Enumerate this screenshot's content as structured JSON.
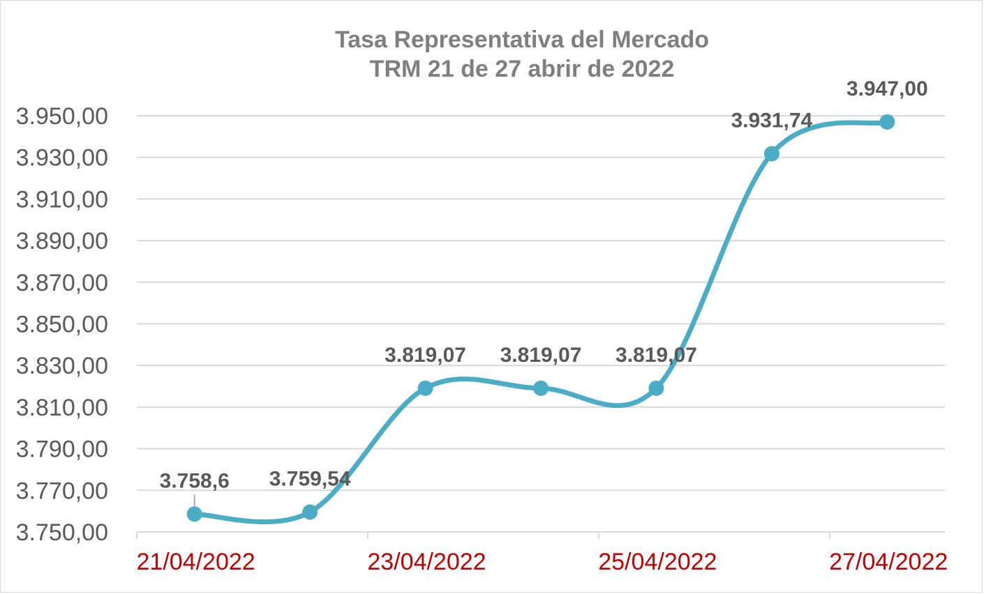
{
  "chart_data": {
    "type": "line",
    "title": "Tasa Representativa del Mercado",
    "subtitle": "TRM  21 de 27 abrir de 2022",
    "xlabel": "",
    "ylabel": "",
    "x": [
      "21/04/2022",
      "22/04/2022",
      "23/04/2022",
      "24/04/2022",
      "25/04/2022",
      "26/04/2022",
      "27/04/2022"
    ],
    "x_tick_labels": [
      "21/04/2022",
      "23/04/2022",
      "25/04/2022",
      "27/04/2022"
    ],
    "y_tick_labels": [
      "3.750,00",
      "3.770,00",
      "3.790,00",
      "3.810,00",
      "3.830,00",
      "3.850,00",
      "3.870,00",
      "3.890,00",
      "3.910,00",
      "3.930,00",
      "3.950,00"
    ],
    "ylim": [
      3750,
      3950
    ],
    "grid": true,
    "smooth": true,
    "series": [
      {
        "values": [
          3758.6,
          3759.54,
          3819.07,
          3819.07,
          3819.07,
          3931.74,
          3947.0
        ],
        "data_labels": [
          "3.758,6",
          "3.759,54",
          "3.819,07",
          "3.819,07",
          "3.819,07",
          "3.931,74",
          "3.947,00"
        ],
        "color": "#4bacc6"
      }
    ],
    "colors": {
      "line": "#4bacc6",
      "grid": "#d9d9d9",
      "title": "#7f7f7f",
      "y_tick": "#595959",
      "x_tick": "#c00000",
      "data_label": "#595959"
    }
  }
}
